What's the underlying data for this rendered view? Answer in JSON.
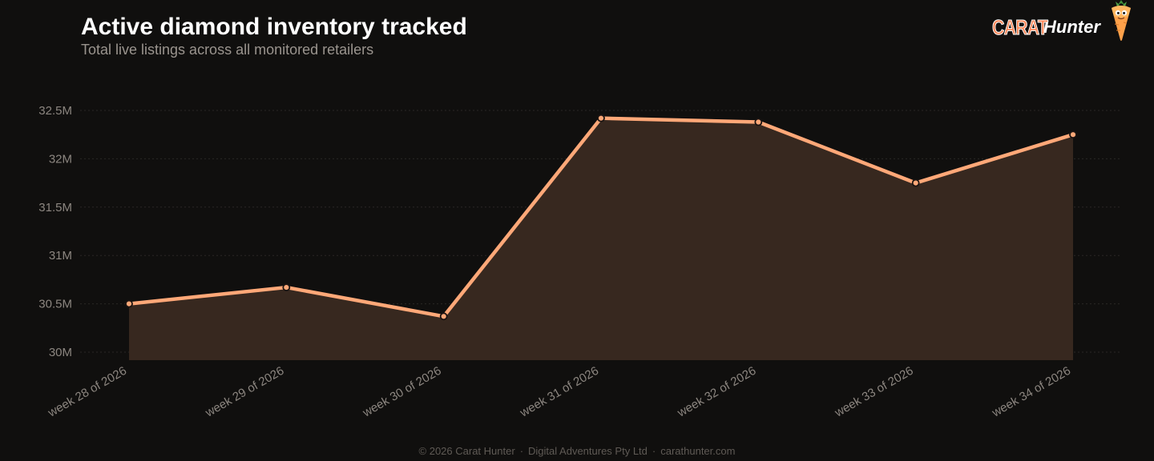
{
  "header": {
    "title": "Active diamond inventory tracked",
    "subtitle": "Total live listings across all monitored retailers"
  },
  "brand": {
    "word1": "CARAT",
    "word2": "Hunter",
    "mascot_icon": "carrot-mascot-icon"
  },
  "footer": {
    "copyright": "© 2026 Carat Hunter",
    "company": "Digital Adventures Pty Ltd",
    "site": "carathunter.com",
    "separator": "·"
  },
  "colors": {
    "background": "#100f0e",
    "line": "#ffa878",
    "area": "#37281f",
    "grid": "#2a2725",
    "tick_text": "#8c8680"
  },
  "chart_data": {
    "type": "area",
    "title": "Active diamond inventory tracked",
    "subtitle": "Total live listings across all monitored retailers",
    "xlabel": "",
    "ylabel": "",
    "categories": [
      "week 28 of 2026",
      "week 29 of 2026",
      "week 30 of 2026",
      "week 31 of 2026",
      "week 32 of 2026",
      "week 33 of 2026",
      "week 34 of 2026"
    ],
    "series": [
      {
        "values": [
          30.5,
          30.67,
          30.37,
          32.42,
          32.38,
          31.75,
          32.25
        ]
      }
    ],
    "unit_suffix": "M",
    "ylim": [
      30,
      32.5
    ],
    "yticks": [
      30,
      30.5,
      31,
      31.5,
      32,
      32.5
    ],
    "ytick_labels": [
      "30M",
      "30.5M",
      "31M",
      "31.5M",
      "32M",
      "32.5M"
    ],
    "grid": true,
    "legend": "none"
  }
}
